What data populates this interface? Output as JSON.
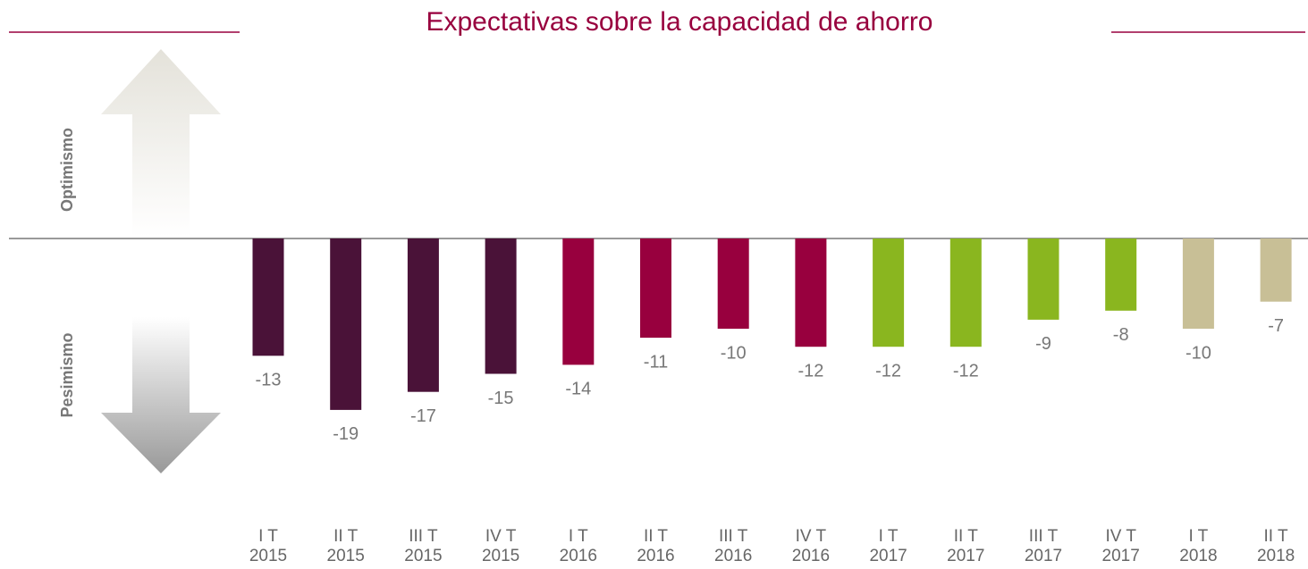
{
  "chart_data": {
    "type": "bar",
    "title": "Expectativas sobre la capacidad de ahorro",
    "optimism_label": "Optimismo",
    "pessimism_label": "Pesimismo",
    "categories": [
      "I T\n2015",
      "II T\n2015",
      "III T\n2015",
      "IV T\n2015",
      "I T\n2016",
      "II T\n2016",
      "III T\n2016",
      "IV T\n2016",
      "I T\n2017",
      "II T\n2017",
      "III T\n2017",
      "IV T\n2017",
      "I T\n2018",
      "II T\n2018"
    ],
    "values": [
      -13,
      -19,
      -17,
      -15,
      -14,
      -11,
      -10,
      -12,
      -12,
      -12,
      -9,
      -8,
      -10,
      -7
    ],
    "colors": [
      "#4a1238",
      "#4a1238",
      "#4a1238",
      "#4a1238",
      "#98003e",
      "#98003e",
      "#98003e",
      "#98003e",
      "#8ab61f",
      "#8ab61f",
      "#8ab61f",
      "#8ab61f",
      "#c8bf96",
      "#c8bf96"
    ],
    "ylim": [
      -25,
      25
    ]
  }
}
